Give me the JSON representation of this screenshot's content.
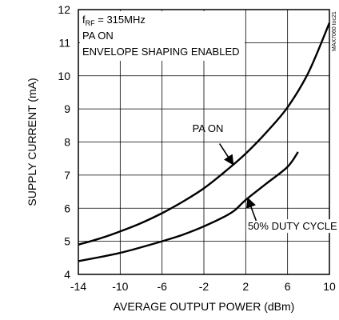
{
  "chart_data": {
    "type": "line",
    "xlabel": "AVERAGE OUTPUT POWER (dBm)",
    "ylabel": "SUPPLY CURRENT (mA)",
    "xlim": [
      -14,
      10
    ],
    "ylim": [
      4,
      12
    ],
    "x_ticks": [
      -14,
      -10,
      -6,
      -2,
      2,
      6,
      10
    ],
    "y_ticks": [
      4,
      5,
      6,
      7,
      8,
      9,
      10,
      11,
      12
    ],
    "grid": true,
    "conditions": {
      "line1_prefix": "f",
      "line1_sub": "RF",
      "line1_rest": " = 315MHz",
      "line2": "PA ON",
      "line3": "ENVELOPE SHAPING ENABLED"
    },
    "side_code": "MAX7060 toc21",
    "series": [
      {
        "name": "PA ON",
        "x": [
          -14,
          -12,
          -10,
          -8,
          -6,
          -4,
          -2,
          0,
          2,
          4,
          6,
          8,
          10
        ],
        "y": [
          4.9,
          5.08,
          5.3,
          5.55,
          5.85,
          6.2,
          6.6,
          7.1,
          7.65,
          8.3,
          9.05,
          10.1,
          11.6
        ]
      },
      {
        "name": "50% DUTY CYCLE",
        "x": [
          -14,
          -12,
          -10,
          -8,
          -6,
          -4,
          -2,
          0,
          1,
          2,
          4,
          6,
          7
        ],
        "y": [
          4.4,
          4.52,
          4.65,
          4.82,
          5.0,
          5.2,
          5.45,
          5.75,
          5.95,
          6.25,
          6.75,
          7.25,
          7.7
        ]
      }
    ],
    "annotations": [
      {
        "text": "PA ON",
        "series": 0,
        "arrow_to_x": 0.8
      },
      {
        "text": "50% DUTY CYCLE",
        "series": 1,
        "arrow_to_x": 2.2
      }
    ]
  }
}
